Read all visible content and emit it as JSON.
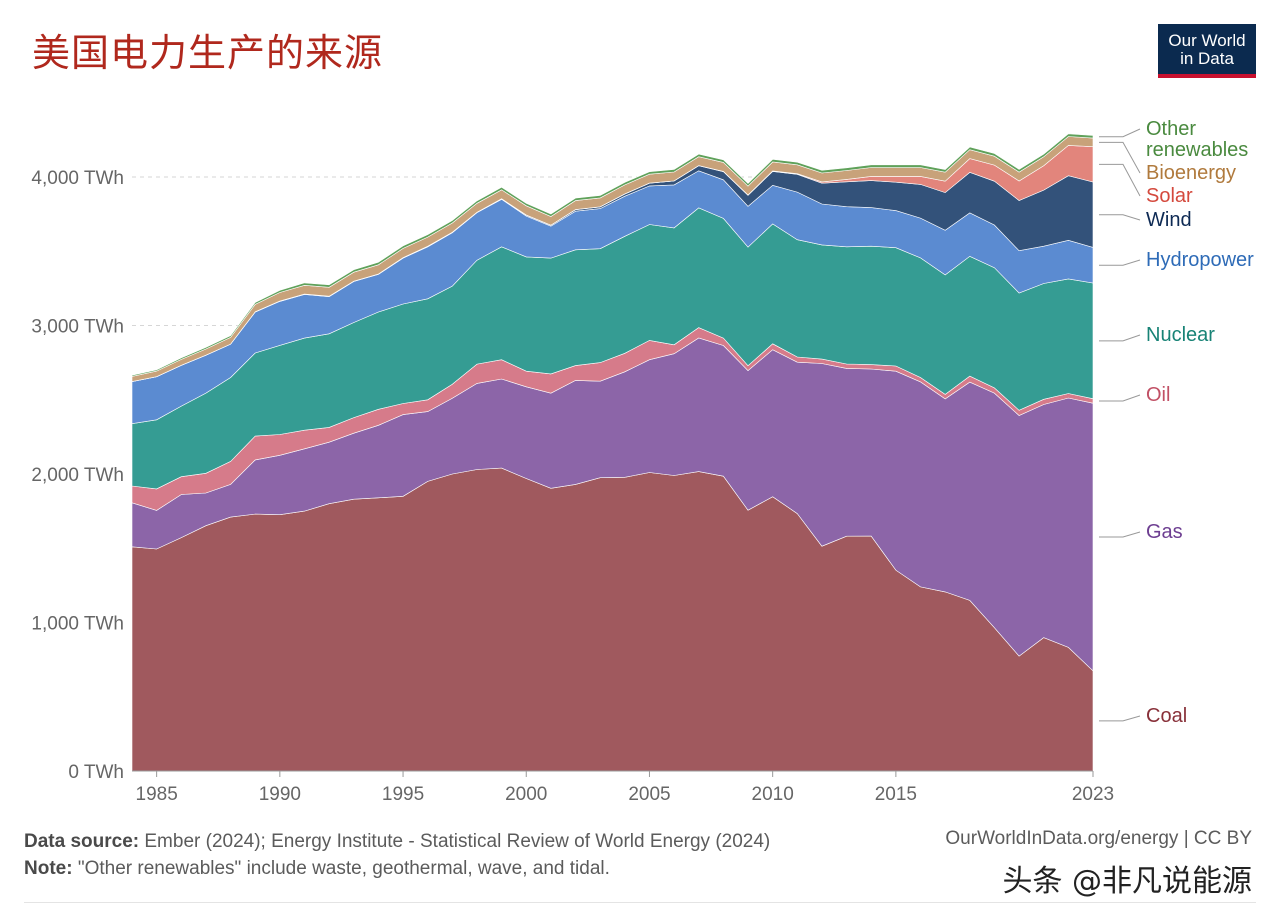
{
  "title": "美国电力生产的来源",
  "logo": {
    "line1": "Our World",
    "line2": "in Data"
  },
  "footer": {
    "source_label": "Data source:",
    "source_text": " Ember (2024); Energy Institute - Statistical Review of World Energy (2024)",
    "note_label": "Note:",
    "note_text": " \"Other renewables\" include waste, geothermal, wave, and tidal.",
    "right_text": "OurWorldInData.org/energy | CC BY"
  },
  "watermark": "头条 @非凡说能源",
  "chart_data": {
    "type": "area",
    "stacked": true,
    "unit": "TWh",
    "x": [
      1984,
      1985,
      1986,
      1987,
      1988,
      1989,
      1990,
      1991,
      1992,
      1993,
      1994,
      1995,
      1996,
      1997,
      1998,
      1999,
      2000,
      2001,
      2002,
      2003,
      2004,
      2005,
      2006,
      2007,
      2008,
      2009,
      2010,
      2011,
      2012,
      2013,
      2014,
      2015,
      2016,
      2017,
      2018,
      2019,
      2020,
      2021,
      2022,
      2023
    ],
    "x_ticks": [
      {
        "value": 1985,
        "label": "1985"
      },
      {
        "value": 1990,
        "label": "1990"
      },
      {
        "value": 1995,
        "label": "1995"
      },
      {
        "value": 2000,
        "label": "2000"
      },
      {
        "value": 2005,
        "label": "2005"
      },
      {
        "value": 2010,
        "label": "2010"
      },
      {
        "value": 2015,
        "label": "2015"
      },
      {
        "value": 2023,
        "label": "2023"
      }
    ],
    "y_ticks": [
      {
        "value": 0,
        "label": "0 TWh"
      },
      {
        "value": 1000,
        "label": "1,000 TWh"
      },
      {
        "value": 2000,
        "label": "2,000 TWh"
      },
      {
        "value": 3000,
        "label": "3,000 TWh"
      },
      {
        "value": 4000,
        "label": "4,000 TWh"
      }
    ],
    "ylim": [
      0,
      4000
    ],
    "grid": "horizontal dashed",
    "legend": "right",
    "series": [
      {
        "name": "Coal",
        "color": "#a0595e",
        "values": [
          1510,
          1495,
          1572,
          1652,
          1710,
          1730,
          1726,
          1750,
          1800,
          1830,
          1840,
          1850,
          1950,
          2000,
          2030,
          2040,
          1970,
          1904,
          1930,
          1975,
          1978,
          2010,
          1990,
          2016,
          1985,
          1756,
          1847,
          1733,
          1514,
          1581,
          1582,
          1352,
          1240,
          1206,
          1149,
          965,
          774,
          898,
          832,
          675
        ],
        "label_color": "#883039"
      },
      {
        "name": "Gas",
        "color": "#8c65a8",
        "values": [
          296,
          260,
          290,
          220,
          220,
          365,
          400,
          420,
          414,
          445,
          488,
          550,
          470,
          510,
          580,
          600,
          617,
          640,
          700,
          650,
          710,
          760,
          820,
          900,
          880,
          940,
          990,
          1020,
          1230,
          1130,
          1125,
          1340,
          1380,
          1300,
          1470,
          1580,
          1620,
          1570,
          1680,
          1802
        ],
        "label_color": "#6d3e91"
      },
      {
        "name": "Oil",
        "color": "#d67b8a",
        "values": [
          113,
          145,
          120,
          133,
          155,
          160,
          140,
          125,
          100,
          105,
          108,
          75,
          80,
          95,
          130,
          130,
          105,
          130,
          100,
          125,
          125,
          130,
          60,
          70,
          50,
          33,
          40,
          35,
          30,
          30,
          30,
          35,
          30,
          30,
          40,
          35,
          35,
          35,
          30,
          30
        ],
        "label_color": "#c15065"
      },
      {
        "name": "Nuclear",
        "color": "#359c93",
        "values": [
          420,
          465,
          475,
          540,
          565,
          560,
          600,
          620,
          630,
          640,
          655,
          670,
          680,
          660,
          700,
          760,
          770,
          780,
          780,
          767,
          788,
          780,
          787,
          806,
          806,
          799,
          807,
          790,
          769,
          789,
          797,
          797,
          805,
          805,
          807,
          809,
          790,
          780,
          772,
          779
        ],
        "label_color": "#188376"
      },
      {
        "name": "Hydropower",
        "color": "#5b8bd1",
        "values": [
          283,
          290,
          275,
          255,
          225,
          275,
          296,
          294,
          250,
          276,
          253,
          309,
          350,
          360,
          320,
          320,
          275,
          215,
          260,
          270,
          270,
          260,
          290,
          250,
          260,
          275,
          260,
          320,
          275,
          270,
          260,
          250,
          268,
          300,
          292,
          288,
          285,
          251,
          260,
          240
        ],
        "label_color": "#2e6bb7"
      },
      {
        "name": "Wind",
        "color": "#33527a",
        "values": [
          0,
          0,
          0,
          0,
          0,
          2,
          3,
          3,
          3,
          3,
          3,
          3,
          3,
          3,
          3,
          4,
          6,
          6,
          10,
          11,
          14,
          18,
          26,
          34,
          55,
          74,
          94,
          120,
          140,
          168,
          182,
          191,
          227,
          254,
          273,
          295,
          338,
          378,
          435,
          440
        ],
        "label_color": "#0e2a54"
      },
      {
        "name": "Solar",
        "color": "#e2857c",
        "values": [
          0,
          0,
          0,
          0,
          0,
          0,
          0,
          0,
          0,
          0,
          0,
          0,
          0,
          0,
          0,
          0,
          1,
          1,
          1,
          1,
          1,
          1,
          1,
          1,
          2,
          2,
          3,
          4,
          9,
          16,
          28,
          39,
          54,
          77,
          93,
          108,
          131,
          164,
          204,
          238
        ],
        "label_color": "#d4493d"
      },
      {
        "name": "Bioenergy",
        "color": "#c8a27a",
        "values": [
          35,
          38,
          40,
          42,
          45,
          50,
          57,
          59,
          60,
          60,
          62,
          62,
          62,
          62,
          60,
          60,
          62,
          58,
          60,
          60,
          61,
          60,
          60,
          60,
          60,
          60,
          60,
          60,
          60,
          60,
          60,
          60,
          60,
          60,
          60,
          60,
          60,
          60,
          60,
          58
        ],
        "label_color": "#b07a3d"
      },
      {
        "name": "Other renewables",
        "color": "#5fa15a",
        "values": [
          8,
          9,
          10,
          11,
          12,
          13,
          15,
          16,
          17,
          17,
          17,
          17,
          17,
          17,
          17,
          17,
          17,
          17,
          17,
          17,
          17,
          17,
          17,
          17,
          18,
          18,
          18,
          18,
          18,
          18,
          18,
          18,
          18,
          18,
          18,
          18,
          18,
          18,
          18,
          18
        ],
        "label_color": "#4a8a3f"
      }
    ]
  }
}
